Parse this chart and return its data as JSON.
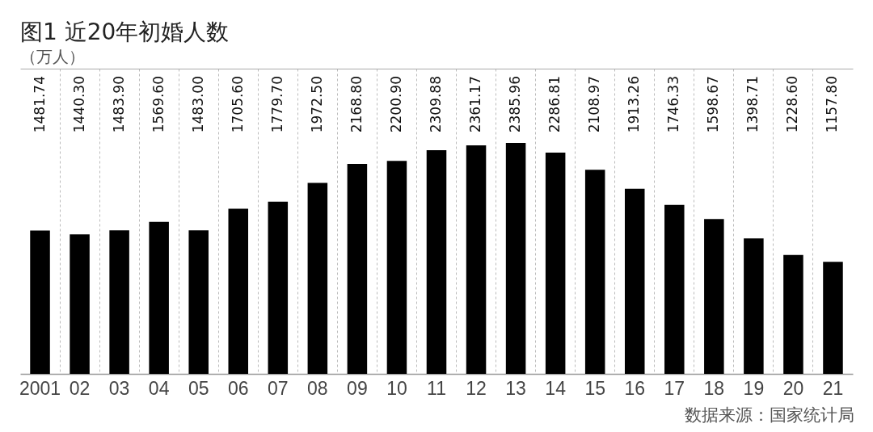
{
  "chart_data": {
    "type": "bar",
    "title": "图1 近20年初婚人数",
    "subtitle": "（万人）",
    "categories": [
      "2001",
      "02",
      "03",
      "04",
      "05",
      "06",
      "07",
      "08",
      "09",
      "10",
      "11",
      "12",
      "13",
      "14",
      "15",
      "16",
      "17",
      "18",
      "19",
      "20",
      "21"
    ],
    "values": [
      1481.74,
      1440.3,
      1483.9,
      1569.6,
      1483.0,
      1705.6,
      1779.7,
      1972.5,
      2168.8,
      2200.9,
      2309.88,
      2361.17,
      2385.96,
      2286.81,
      2108.97,
      1913.26,
      1746.33,
      1598.67,
      1398.71,
      1228.6,
      1157.8
    ],
    "value_labels": [
      "1481.74",
      "1440.30",
      "1483.90",
      "1569.60",
      "1483.00",
      "1705.60",
      "1779.70",
      "1972.50",
      "2168.80",
      "2200.90",
      "2309.88",
      "2361.17",
      "2385.96",
      "2286.81",
      "2108.97",
      "1913.26",
      "1746.33",
      "1598.67",
      "1398.71",
      "1228.60",
      "1157.80"
    ],
    "color": "#000000",
    "grid": "x",
    "annotations": [
      "数据来源：国家统计局"
    ]
  }
}
